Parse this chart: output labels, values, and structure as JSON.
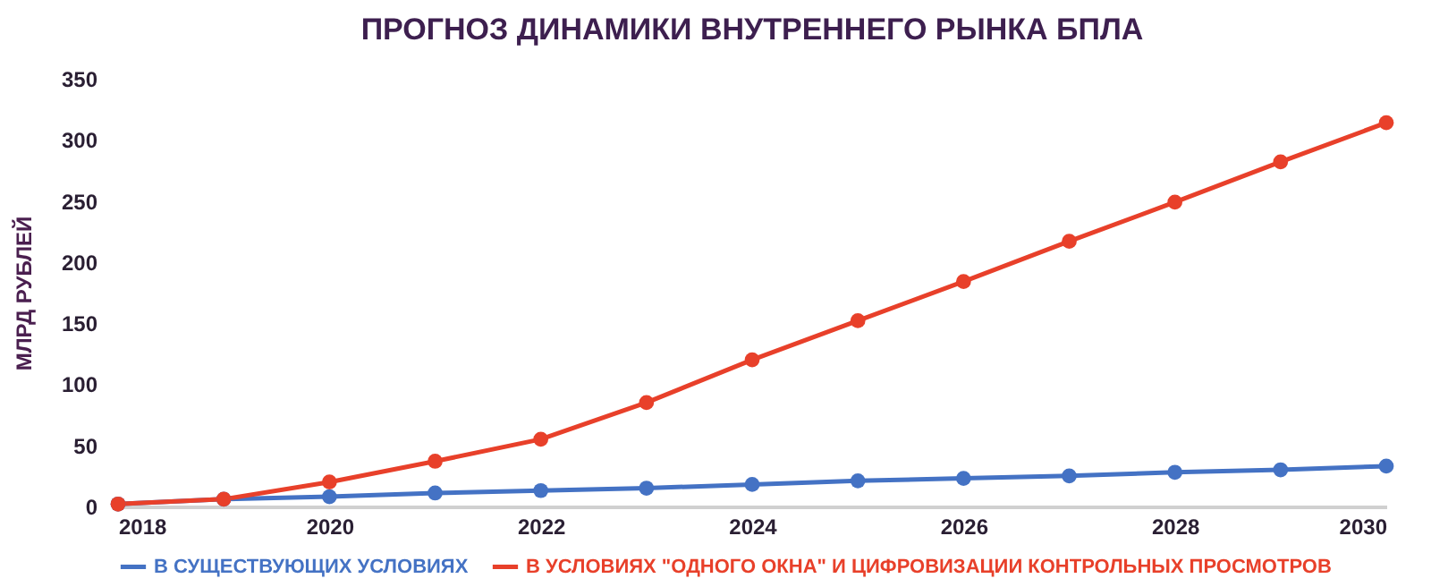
{
  "chart_data": {
    "type": "line",
    "title": "ПРОГНОЗ ДИНАМИКИ ВНУТРЕННЕГО РЫНКА БПЛА",
    "ylabel": "МЛРД РУБЛЕЙ",
    "x": [
      2018,
      2019,
      2020,
      2021,
      2022,
      2023,
      2024,
      2025,
      2026,
      2027,
      2028,
      2029,
      2030
    ],
    "series": [
      {
        "name": "В СУЩЕСТВУЮЩИХ УСЛОВИЯХ",
        "color": "#4472c4",
        "values": [
          2,
          6,
          8,
          11,
          13,
          15,
          18,
          21,
          23,
          25,
          28,
          30,
          33
        ]
      },
      {
        "name": "В УСЛОВИЯХ \"ОДНОГО ОКНА\" И ЦИФРОВИЗАЦИИ КОНТРОЛЬНЫХ ПРОСМОТРОВ",
        "color": "#e8402a",
        "values": [
          2,
          6,
          20,
          37,
          55,
          85,
          120,
          152,
          184,
          217,
          249,
          282,
          314
        ]
      }
    ],
    "xlim": [
      2018,
      2030
    ],
    "xticks": [
      2018,
      2020,
      2022,
      2024,
      2026,
      2028,
      2030
    ],
    "ylim": [
      0,
      350
    ],
    "yticks": [
      0,
      50,
      100,
      150,
      200,
      250,
      300,
      350
    ],
    "grid": false,
    "legend": "bottom",
    "marker": "circle",
    "line_style": "solid"
  }
}
